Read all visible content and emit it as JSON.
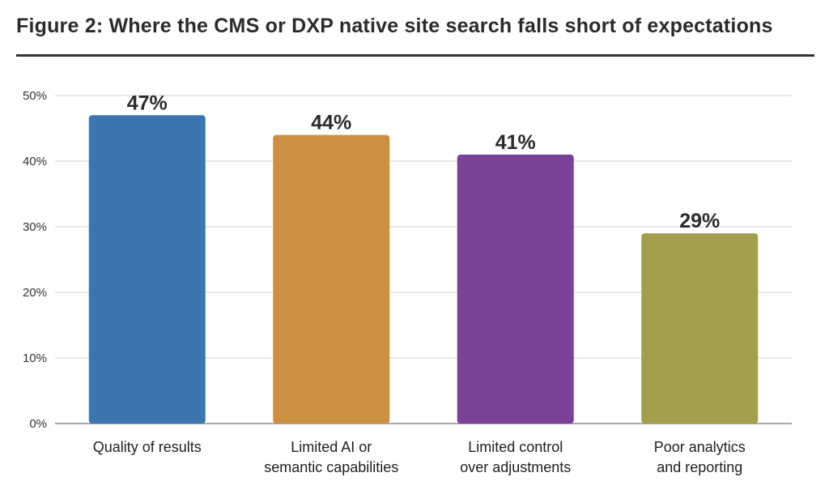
{
  "figure": {
    "title": "Figure 2:  Where the CMS or DXP native site search falls short of expectations"
  },
  "chart_data": {
    "type": "bar",
    "title": "Figure 2:  Where the CMS or DXP native site search falls short of expectations",
    "xlabel": "",
    "ylabel": "",
    "ylim": [
      0,
      50
    ],
    "y_ticks": [
      0,
      10,
      20,
      30,
      40,
      50
    ],
    "y_tick_labels": [
      "0%",
      "10%",
      "20%",
      "30%",
      "40%",
      "50%"
    ],
    "grid": true,
    "legend": "none",
    "categories": [
      [
        "Quality of results"
      ],
      [
        "Limited AI or",
        "semantic capabilities"
      ],
      [
        "Limited control",
        "over adjustments"
      ],
      [
        "Poor analytics",
        "and reporting"
      ]
    ],
    "values": [
      47,
      44,
      41,
      29
    ],
    "value_labels": [
      "47%",
      "44%",
      "41%",
      "29%"
    ],
    "colors": [
      "#3b76b0",
      "#cd8f42",
      "#7b4196",
      "#a29e4b"
    ]
  }
}
